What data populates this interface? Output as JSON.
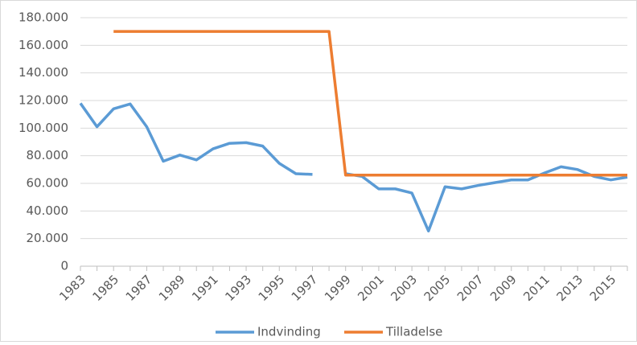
{
  "chart_data": {
    "type": "line",
    "categories": [
      "1983",
      null,
      "1985",
      null,
      "1987",
      null,
      "1989",
      null,
      "1991",
      null,
      "1993",
      null,
      "1995",
      null,
      "1997",
      null,
      "1999",
      null,
      "2001",
      null,
      "2003",
      null,
      "2005",
      null,
      "2007",
      null,
      "2009",
      null,
      "2011",
      null,
      "2013",
      null,
      "2015",
      null
    ],
    "series": [
      {
        "name": "Indvinding",
        "color": "#5b9bd5",
        "values": [
          118000,
          101000,
          114000,
          117500,
          101000,
          76000,
          80500,
          77000,
          85000,
          89000,
          89500,
          87000,
          74500,
          67000,
          66500,
          null,
          67000,
          65000,
          56000,
          56000,
          53000,
          25500,
          57500,
          56000,
          58500,
          60500,
          62500,
          62500,
          67500,
          72000,
          70000,
          65000,
          62500,
          64500
        ]
      },
      {
        "name": "Tilladelse",
        "color": "#ed7d31",
        "values": [
          null,
          null,
          170000,
          170000,
          170000,
          170000,
          170000,
          170000,
          170000,
          170000,
          170000,
          170000,
          170000,
          170000,
          170000,
          170000,
          66000,
          66000,
          66000,
          66000,
          66000,
          66000,
          66000,
          66000,
          66000,
          66000,
          66000,
          66000,
          66000,
          66000,
          66000,
          66000,
          66000,
          66000
        ]
      }
    ],
    "ylim": [
      0,
      180000
    ],
    "yticks": [
      0,
      {
        "value": 20000,
        "label": "20.000"
      },
      {
        "value": 40000,
        "label": "40.000"
      },
      {
        "value": 60000,
        "label": "60.000"
      },
      {
        "value": 80000,
        "label": "80.000"
      },
      {
        "value": 100000,
        "label": "100.000"
      },
      {
        "value": 120000,
        "label": "120.000"
      },
      {
        "value": 140000,
        "label": "140.000"
      },
      {
        "value": 160000,
        "label": "160.000"
      },
      {
        "value": 180000,
        "label": "180.000"
      }
    ],
    "grid": true,
    "legend": "bottom"
  }
}
